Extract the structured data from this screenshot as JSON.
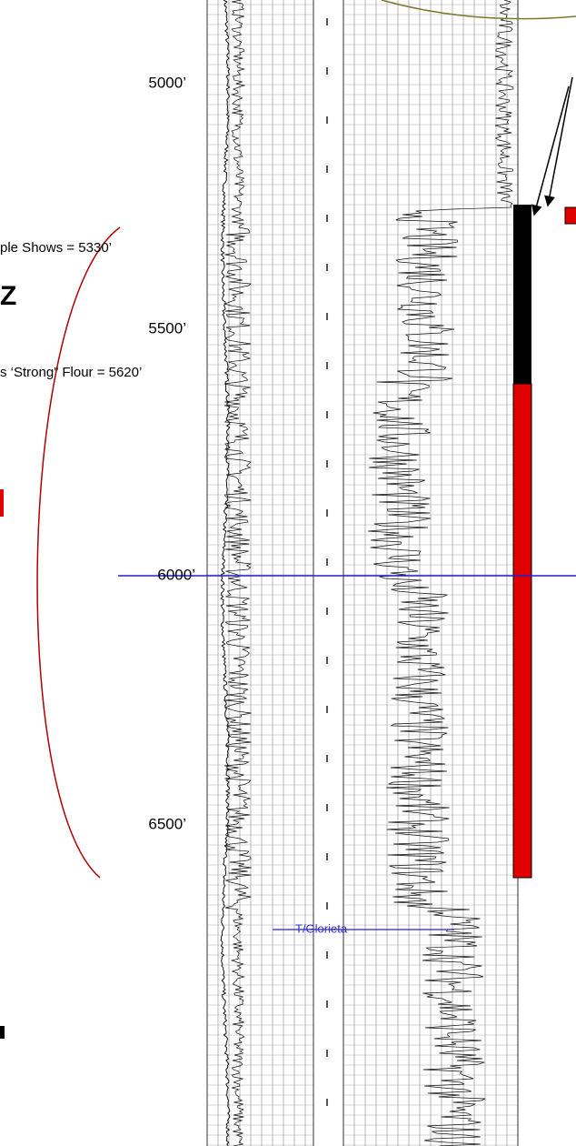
{
  "depth_labels": [
    "5000’",
    "5500’",
    "6000’",
    "6500’"
  ],
  "annotations": {
    "sample_shows": "ple Shows = 5330’",
    "zone_letter": "Z",
    "strong_flour": "s ‘Strong” Flour = 5620’",
    "formation_top": "T/Glorieta"
  }
}
